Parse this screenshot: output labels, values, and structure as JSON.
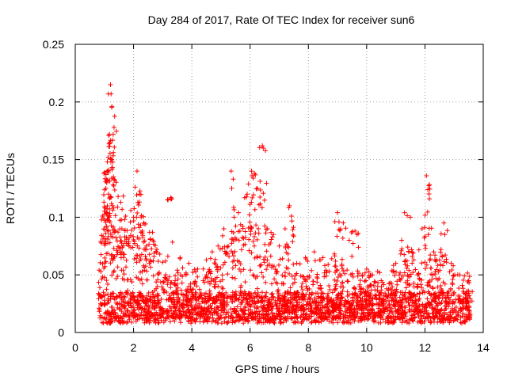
{
  "chart_data": {
    "type": "scatter",
    "title": "Day 284 of 2017, Rate Of TEC Index for receiver sun6",
    "xlabel": "GPS time / hours",
    "ylabel": "ROTI / TECUs",
    "xlim": [
      0,
      14
    ],
    "ylim": [
      0,
      0.25
    ],
    "xticks": [
      "0",
      "2",
      "4",
      "6",
      "8",
      "10",
      "12",
      "14"
    ],
    "yticks": [
      "0",
      "0.05",
      "0.1",
      "0.15",
      "0.2",
      "0.25"
    ],
    "grid": true,
    "marker": "+",
    "series_color": "#ff0000",
    "series": [
      {
        "name": "ROTI",
        "x_range": [
          0.8,
          13.55
        ],
        "x": [
          1.21,
          1.23,
          1.17,
          1.26,
          1.33,
          1.1,
          1.12,
          1.18,
          1.24,
          1.05,
          1.08,
          1.14,
          1.28,
          1.31,
          2.12,
          2.2,
          1.47,
          1.56,
          0.95,
          1.0,
          2.55,
          2.1,
          2.35,
          2.65,
          3.28,
          1.85,
          1.6,
          1.7,
          2.0,
          2.3,
          2.8,
          2.9,
          3.1,
          3.6,
          3.9,
          4.2,
          4.5,
          4.7,
          4.9,
          5.1,
          5.35,
          5.45,
          5.6,
          5.75,
          5.9,
          6.05,
          6.15,
          6.25,
          6.42,
          6.45,
          6.3,
          6.6,
          6.8,
          7.0,
          7.2,
          7.35,
          7.42,
          7.6,
          7.9,
          8.2,
          8.5,
          8.8,
          9.0,
          9.05,
          9.2,
          9.4,
          9.6,
          9.85,
          10.0,
          10.2,
          10.5,
          10.8,
          11.0,
          11.3,
          11.5,
          11.9,
          12.05,
          12.1,
          12.3,
          12.55,
          12.65,
          12.9,
          13.2,
          13.5,
          11.2,
          11.45,
          12.2
        ],
        "y": [
          0.215,
          0.207,
          0.172,
          0.196,
          0.178,
          0.148,
          0.14,
          0.165,
          0.15,
          0.125,
          0.13,
          0.12,
          0.11,
          0.108,
          0.14,
          0.12,
          0.118,
          0.113,
          0.101,
          0.109,
          0.087,
          0.1,
          0.095,
          0.087,
          0.117,
          0.082,
          0.09,
          0.083,
          0.1,
          0.088,
          0.072,
          0.068,
          0.062,
          0.065,
          0.06,
          0.055,
          0.063,
          0.07,
          0.075,
          0.09,
          0.14,
          0.1,
          0.104,
          0.092,
          0.12,
          0.14,
          0.138,
          0.125,
          0.162,
          0.16,
          0.086,
          0.09,
          0.085,
          0.075,
          0.09,
          0.11,
          0.101,
          0.06,
          0.065,
          0.07,
          0.065,
          0.064,
          0.104,
          0.096,
          0.095,
          0.08,
          0.088,
          0.05,
          0.055,
          0.05,
          0.045,
          0.043,
          0.06,
          0.104,
          0.1,
          0.09,
          0.136,
          0.124,
          0.07,
          0.072,
          0.095,
          0.06,
          0.05,
          0.045,
          0.08,
          0.07,
          0.056
        ]
      }
    ]
  }
}
